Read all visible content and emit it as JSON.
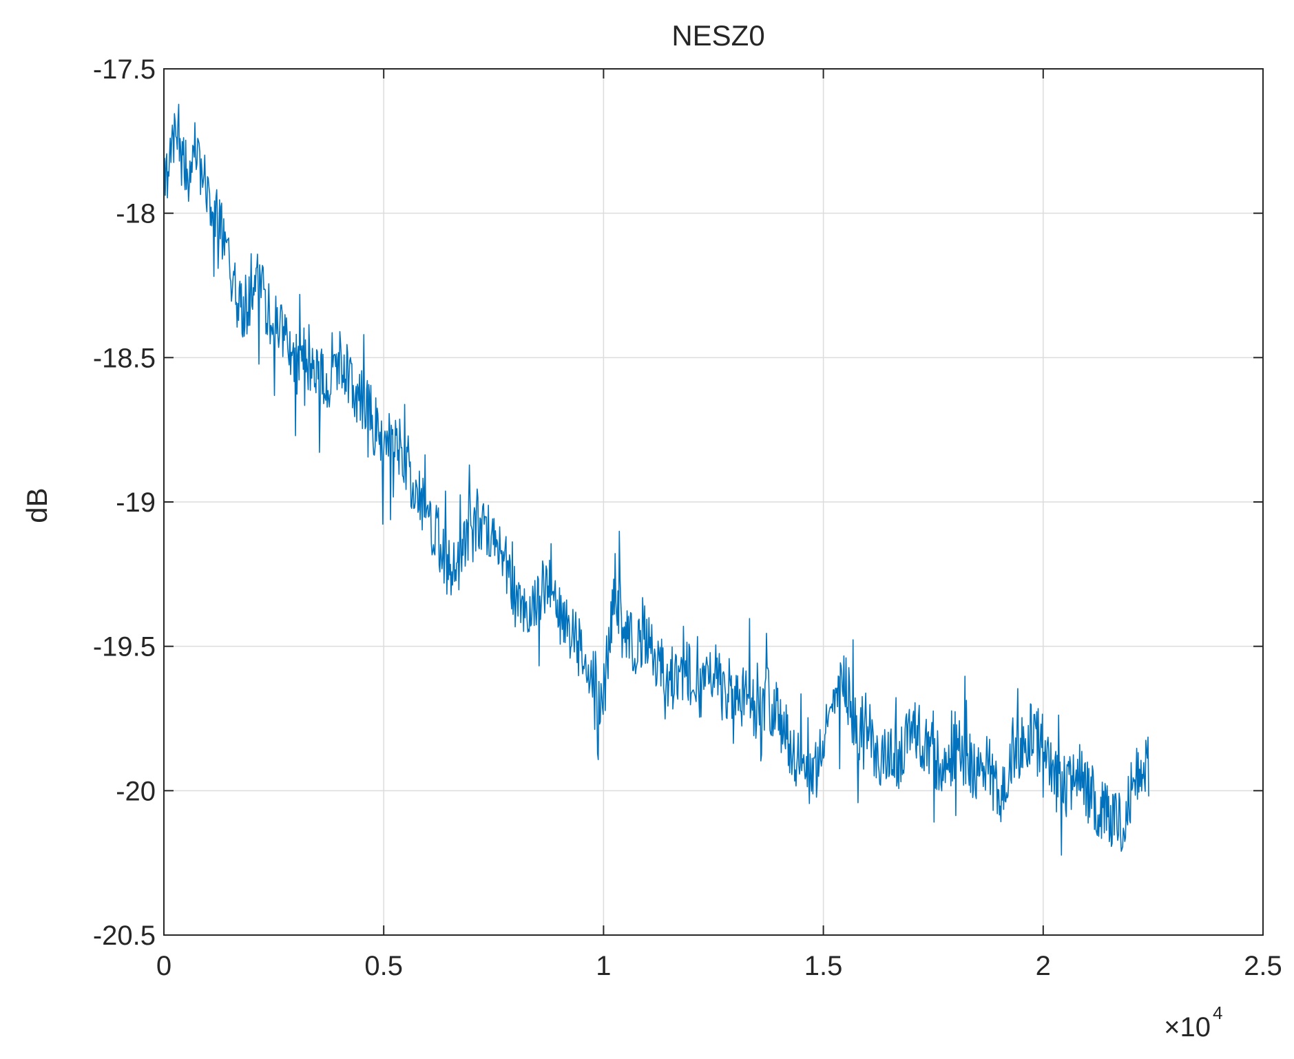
{
  "chart_data": {
    "type": "line",
    "title": "NESZ0",
    "xlabel": "",
    "ylabel": "dB",
    "x_multiplier_base": "×10",
    "x_multiplier_exponent": "4",
    "xlim": [
      0,
      25000
    ],
    "ylim": [
      -20.5,
      -17.5
    ],
    "xticks": [
      0,
      5000,
      10000,
      15000,
      20000,
      25000
    ],
    "xtick_labels": [
      "0",
      "0.5",
      "1",
      "1.5",
      "2",
      "2.5"
    ],
    "yticks": [
      -20.5,
      -20,
      -19.5,
      -19,
      -18.5,
      -18,
      -17.5
    ],
    "ytick_labels": [
      "-20.5",
      "-20",
      "-19.5",
      "-19",
      "-18.5",
      "-18",
      "-17.5"
    ],
    "grid": true,
    "series": [
      {
        "color": "#0072BD",
        "x": [
          0,
          250,
          500,
          750,
          1000,
          1250,
          1500,
          1750,
          2000,
          2250,
          2500,
          2750,
          3000,
          3250,
          3500,
          3750,
          4000,
          4250,
          4500,
          4750,
          5000,
          5250,
          5500,
          5750,
          6000,
          6250,
          6500,
          6750,
          7000,
          7250,
          7500,
          7750,
          8000,
          8250,
          8500,
          8750,
          9000,
          9250,
          9500,
          9750,
          10000,
          10250,
          10500,
          10750,
          11000,
          11250,
          11500,
          11750,
          12000,
          12250,
          12500,
          12750,
          13000,
          13250,
          13500,
          13750,
          14000,
          14250,
          14500,
          14750,
          15000,
          15250,
          15500,
          15750,
          16000,
          16250,
          16500,
          16750,
          17000,
          17250,
          17500,
          17750,
          18000,
          18250,
          18500,
          18750,
          19000,
          19250,
          19500,
          19750,
          20000,
          20250,
          20500,
          20750,
          21000,
          21250,
          21500,
          21750,
          22000,
          22250,
          22400
        ],
        "y": [
          -17.9,
          -17.72,
          -17.85,
          -17.78,
          -17.95,
          -18.0,
          -18.2,
          -18.35,
          -18.3,
          -18.28,
          -18.38,
          -18.42,
          -18.52,
          -18.5,
          -18.55,
          -18.6,
          -18.5,
          -18.58,
          -18.65,
          -18.72,
          -18.82,
          -18.78,
          -18.85,
          -18.98,
          -19.05,
          -19.12,
          -19.25,
          -19.22,
          -19.05,
          -19.08,
          -19.12,
          -19.18,
          -19.35,
          -19.4,
          -19.32,
          -19.28,
          -19.38,
          -19.45,
          -19.52,
          -19.6,
          -19.68,
          -19.3,
          -19.45,
          -19.52,
          -19.48,
          -19.55,
          -19.62,
          -19.58,
          -19.6,
          -19.65,
          -19.58,
          -19.68,
          -19.7,
          -19.66,
          -19.72,
          -19.68,
          -19.75,
          -19.85,
          -19.9,
          -19.95,
          -19.78,
          -19.7,
          -19.62,
          -19.8,
          -19.75,
          -19.92,
          -19.85,
          -19.9,
          -19.78,
          -19.82,
          -19.88,
          -19.92,
          -19.85,
          -19.88,
          -19.95,
          -19.9,
          -20.05,
          -19.9,
          -19.85,
          -19.8,
          -19.82,
          -19.95,
          -20.02,
          -19.92,
          -20.0,
          -20.05,
          -20.1,
          -20.12,
          -20.0,
          -19.9,
          -19.92
        ]
      }
    ]
  }
}
